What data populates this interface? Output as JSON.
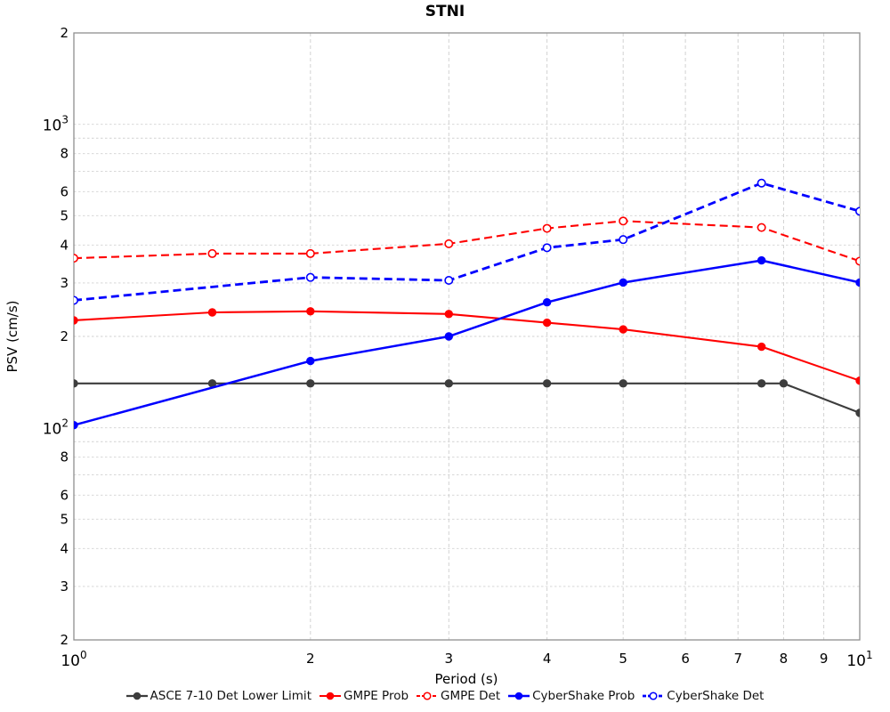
{
  "chart_data": {
    "type": "line",
    "title": "STNI",
    "xlabel": "Period (s)",
    "ylabel": "PSV (cm/s)",
    "xscale": "log",
    "yscale": "log",
    "xlim": [
      1,
      10
    ],
    "ylim": [
      20,
      2000
    ],
    "grid": true,
    "legend_position": "bottom",
    "colors": {
      "red": "#ff0000",
      "blue": "#0000ff",
      "gray": "#3d3d3d",
      "grid_line": "#d2d2d2",
      "frame": "#8f8f8f"
    },
    "x_ticks": [
      {
        "label": "10^0",
        "value": 1
      },
      {
        "label": "2",
        "value": 2
      },
      {
        "label": "3",
        "value": 3
      },
      {
        "label": "4",
        "value": 4
      },
      {
        "label": "5",
        "value": 5
      },
      {
        "label": "6",
        "value": 6
      },
      {
        "label": "7",
        "value": 7
      },
      {
        "label": "8",
        "value": 8
      },
      {
        "label": "9",
        "value": 9
      },
      {
        "label": "10^1",
        "value": 10
      }
    ],
    "y_ticks": [
      {
        "label": "2",
        "value": 2000
      },
      {
        "label": "10^3",
        "value": 1000
      },
      {
        "label": "8",
        "value": 800
      },
      {
        "label": "6",
        "value": 600
      },
      {
        "label": "5",
        "value": 500
      },
      {
        "label": "4",
        "value": 400
      },
      {
        "label": "3",
        "value": 300
      },
      {
        "label": "2",
        "value": 200
      },
      {
        "label": "10^2",
        "value": 100
      },
      {
        "label": "8",
        "value": 80
      },
      {
        "label": "6",
        "value": 60
      },
      {
        "label": "5",
        "value": 50
      },
      {
        "label": "4",
        "value": 40
      },
      {
        "label": "3",
        "value": 30
      },
      {
        "label": "2",
        "value": 20
      }
    ],
    "grid_x": [
      2,
      3,
      4,
      5,
      6,
      7,
      8,
      9
    ],
    "grid_y": [
      1000,
      900,
      800,
      700,
      600,
      500,
      400,
      300,
      200,
      100,
      90,
      80,
      70,
      60,
      50,
      40,
      30
    ],
    "series": [
      {
        "name": "ASCE 7-10 Det Lower Limit",
        "color": "#3d3d3d",
        "line_style": "solid",
        "marker": "filled",
        "line_width": 2.2,
        "x": [
          1,
          1.5,
          2,
          3,
          4,
          5,
          7.5,
          8,
          10
        ],
        "y": [
          140,
          140,
          140,
          140,
          140,
          140,
          140,
          140,
          112
        ]
      },
      {
        "name": "GMPE Prob",
        "color": "#ff0000",
        "line_style": "solid",
        "marker": "filled",
        "line_width": 2.1,
        "x": [
          1,
          1.5,
          2,
          3,
          4,
          5,
          7.5,
          10
        ],
        "y": [
          226,
          240,
          242,
          237,
          222,
          211,
          185,
          143
        ]
      },
      {
        "name": "GMPE Det",
        "color": "#ff0000",
        "line_style": "dashed",
        "marker": "open",
        "line_width": 2.1,
        "x": [
          1,
          1.5,
          2,
          3,
          4,
          5,
          7.5,
          10
        ],
        "y": [
          362,
          375,
          375,
          404,
          454,
          480,
          457,
          354
        ]
      },
      {
        "name": "CyberShake Prob",
        "color": "#0000ff",
        "line_style": "solid",
        "marker": "filled",
        "line_width": 2.5,
        "x": [
          1,
          2,
          3,
          4,
          5,
          7.5,
          10
        ],
        "y": [
          102,
          166,
          200,
          259,
          301,
          356,
          301
        ]
      },
      {
        "name": "CyberShake Det",
        "color": "#0000ff",
        "line_style": "dashed",
        "marker": "open",
        "line_width": 2.8,
        "x": [
          1,
          2,
          3,
          4,
          5,
          7.5,
          10
        ],
        "y": [
          263,
          313,
          306,
          392,
          417,
          640,
          517
        ]
      }
    ]
  }
}
